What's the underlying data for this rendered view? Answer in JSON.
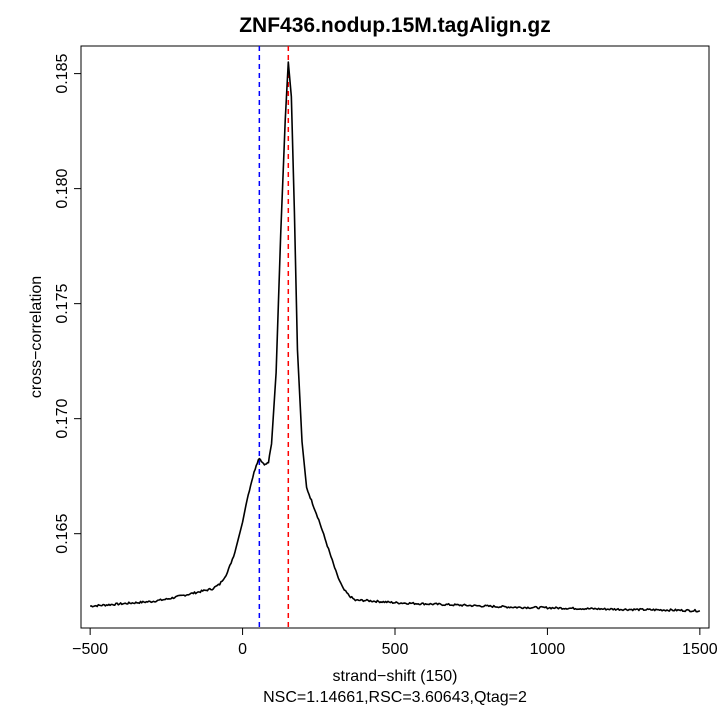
{
  "chart_data": {
    "type": "line",
    "title": "ZNF436.nodup.15M.tagAlign.gz",
    "xlabel": "strand−shift (150)",
    "ylabel": "cross−correlation",
    "subtitle": "NSC=1.14661,RSC=3.60643,Qtag=2",
    "xlim": [
      -530,
      1530
    ],
    "ylim": [
      0.1609,
      0.1862
    ],
    "x_ticks": [
      {
        "value": -500,
        "label": "−500"
      },
      {
        "value": 0,
        "label": "0"
      },
      {
        "value": 500,
        "label": "500"
      },
      {
        "value": 1000,
        "label": "1000"
      },
      {
        "value": 1500,
        "label": "1500"
      }
    ],
    "y_ticks": [
      {
        "value": 0.165,
        "label": "0.165"
      },
      {
        "value": 0.17,
        "label": "0.170"
      },
      {
        "value": 0.175,
        "label": "0.175"
      },
      {
        "value": 0.18,
        "label": "0.180"
      },
      {
        "value": 0.185,
        "label": "0.185"
      }
    ],
    "reference_lines": [
      {
        "name": "phantom-peak",
        "x": 55,
        "color": "#0000ff",
        "style": "dashed"
      },
      {
        "name": "fragment-length",
        "x": 150,
        "color": "#ff0000",
        "style": "dashed"
      }
    ],
    "series": [
      {
        "color": "#000000",
        "x": [
          -500,
          -450,
          -400,
          -350,
          -300,
          -250,
          -200,
          -150,
          -100,
          -75,
          -50,
          -25,
          0,
          15,
          30,
          45,
          55,
          65,
          75,
          85,
          95,
          110,
          125,
          140,
          150,
          160,
          170,
          180,
          195,
          210,
          230,
          250,
          270,
          290,
          310,
          330,
          350,
          370,
          400,
          450,
          500,
          600,
          700,
          800,
          900,
          1000,
          1100,
          1200,
          1300,
          1400,
          1500
        ],
        "y": [
          0.16185,
          0.1619,
          0.16195,
          0.162,
          0.16205,
          0.16215,
          0.1623,
          0.16245,
          0.1626,
          0.1628,
          0.1633,
          0.1642,
          0.1655,
          0.1665,
          0.1673,
          0.168,
          0.1683,
          0.1681,
          0.168,
          0.1681,
          0.1689,
          0.172,
          0.178,
          0.183,
          0.1855,
          0.184,
          0.179,
          0.173,
          0.169,
          0.167,
          0.1663,
          0.1656,
          0.1648,
          0.164,
          0.1632,
          0.1626,
          0.1623,
          0.1621,
          0.1621,
          0.16205,
          0.162,
          0.16195,
          0.1619,
          0.16185,
          0.1618,
          0.16178,
          0.16175,
          0.16172,
          0.1617,
          0.16168,
          0.16165
        ]
      }
    ]
  }
}
